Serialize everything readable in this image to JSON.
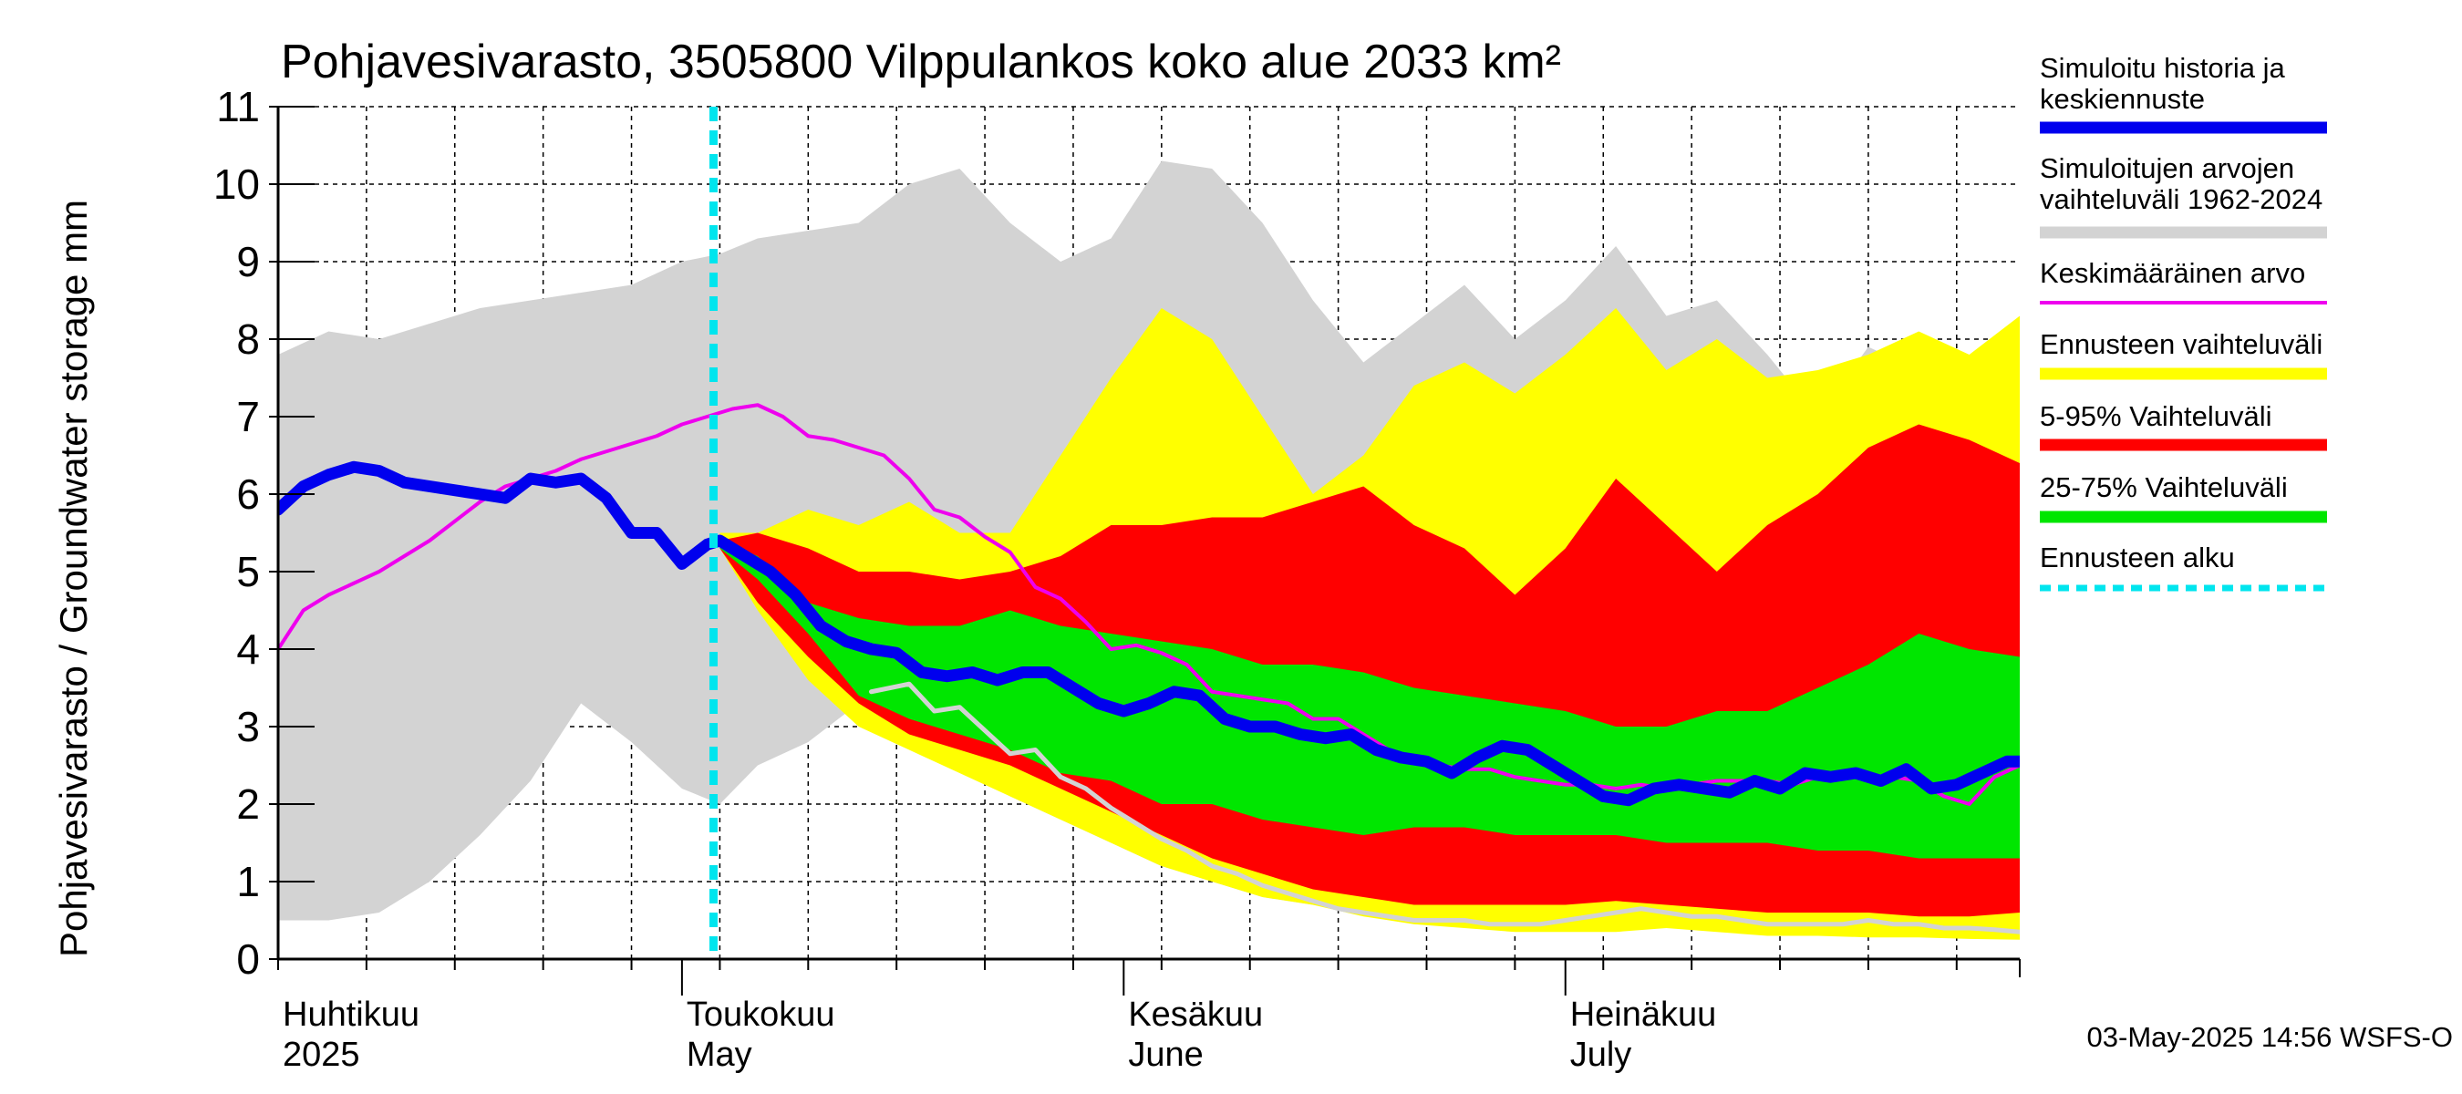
{
  "chart_data": {
    "type": "area",
    "title": "Pohjavesivarasto, 3505800 Vilppulankos koko alue 2033 km²",
    "ylabel": "Pohjavesivarasto / Groundwater storage   mm",
    "ylim": [
      0,
      11
    ],
    "yticks": [
      "0",
      "1",
      "2",
      "3",
      "4",
      "5",
      "6",
      "7",
      "8",
      "9",
      "10",
      "11"
    ],
    "xlim": [
      0,
      138
    ],
    "grid": true,
    "legend_position": "right",
    "month_labels": [
      {
        "day": 0,
        "fi": "Huhtikuu",
        "en": "2025"
      },
      {
        "day": 32,
        "fi": "Toukokuu",
        "en": "May"
      },
      {
        "day": 67,
        "fi": "Kesäkuu",
        "en": "June"
      },
      {
        "day": 102,
        "fi": "Heinäkuu",
        "en": "July"
      }
    ],
    "forecast_start_day": 34.5,
    "colors": {
      "history_range": "#d3d3d3",
      "forecast_range": "#ffff00",
      "p5_95": "#ff0000",
      "p25_75": "#00e600",
      "median": "#0000ee",
      "mean": "#ee00ee",
      "min_line": "#d3d3d3",
      "forecast_start": "#00e5ee"
    },
    "history_range": {
      "x": [
        0,
        4,
        8,
        12,
        16,
        20,
        24,
        28,
        32,
        35,
        38,
        42,
        46,
        50,
        54,
        58,
        62,
        66,
        70,
        74,
        78,
        82,
        86,
        90,
        94,
        98,
        102,
        106,
        110,
        114,
        118,
        122,
        126,
        130,
        134,
        138
      ],
      "upper": [
        7.8,
        8.1,
        8.0,
        8.2,
        8.4,
        8.5,
        8.6,
        8.7,
        9.0,
        9.1,
        9.3,
        9.4,
        9.5,
        10.0,
        10.2,
        9.5,
        9.0,
        9.3,
        10.3,
        10.2,
        9.5,
        8.5,
        7.7,
        8.2,
        8.7,
        8.0,
        8.5,
        9.2,
        8.3,
        8.5,
        7.8,
        7.0,
        7.9,
        7.6,
        7.3,
        7.6
      ],
      "lower": [
        0.5,
        0.5,
        0.6,
        1.0,
        1.6,
        2.3,
        3.3,
        2.8,
        2.2,
        2.0,
        2.5,
        2.8,
        3.3,
        3.0,
        2.5,
        2.1,
        1.8,
        1.5,
        1.2,
        1.0,
        0.8,
        0.7,
        0.6,
        0.5,
        0.45,
        0.45,
        0.5,
        0.5,
        0.45,
        0.4,
        0.4,
        0.35,
        0.35,
        0.33,
        0.3,
        0.3
      ]
    },
    "forecast_range": {
      "x": [
        35,
        38,
        42,
        46,
        50,
        54,
        58,
        62,
        66,
        70,
        74,
        78,
        82,
        86,
        90,
        94,
        98,
        102,
        106,
        110,
        114,
        118,
        122,
        126,
        130,
        134,
        138
      ],
      "upper": [
        5.5,
        5.5,
        5.8,
        5.6,
        5.9,
        5.5,
        5.5,
        6.5,
        7.5,
        8.4,
        8.0,
        7.0,
        6.0,
        6.5,
        7.4,
        7.7,
        7.3,
        7.8,
        8.4,
        7.6,
        8.0,
        7.5,
        7.6,
        7.8,
        8.1,
        7.8,
        8.3
      ],
      "lower": [
        5.3,
        4.5,
        3.6,
        3.0,
        2.7,
        2.4,
        2.1,
        1.8,
        1.5,
        1.2,
        1.0,
        0.8,
        0.7,
        0.55,
        0.45,
        0.4,
        0.35,
        0.35,
        0.35,
        0.4,
        0.35,
        0.3,
        0.3,
        0.28,
        0.28,
        0.26,
        0.25
      ]
    },
    "p5_95": {
      "x": [
        35,
        38,
        42,
        46,
        50,
        54,
        58,
        62,
        66,
        70,
        74,
        78,
        82,
        86,
        90,
        94,
        98,
        102,
        106,
        110,
        114,
        118,
        122,
        126,
        130,
        134,
        138
      ],
      "upper": [
        5.4,
        5.5,
        5.3,
        5.0,
        5.0,
        4.9,
        5.0,
        5.2,
        5.6,
        5.6,
        5.7,
        5.7,
        5.9,
        6.1,
        5.6,
        5.3,
        4.7,
        5.3,
        6.2,
        5.6,
        5.0,
        5.6,
        6.0,
        6.6,
        6.9,
        6.7,
        6.4
      ],
      "lower": [
        5.3,
        4.6,
        3.9,
        3.3,
        2.9,
        2.7,
        2.5,
        2.2,
        1.9,
        1.6,
        1.3,
        1.1,
        0.9,
        0.8,
        0.7,
        0.7,
        0.7,
        0.7,
        0.75,
        0.7,
        0.65,
        0.6,
        0.6,
        0.6,
        0.55,
        0.55,
        0.6
      ]
    },
    "p25_75": {
      "x": [
        35,
        38,
        42,
        46,
        50,
        54,
        58,
        62,
        66,
        70,
        74,
        78,
        82,
        86,
        90,
        94,
        98,
        102,
        106,
        110,
        114,
        118,
        122,
        126,
        130,
        134,
        138
      ],
      "upper": [
        5.4,
        5.2,
        4.6,
        4.4,
        4.3,
        4.3,
        4.5,
        4.3,
        4.2,
        4.1,
        4.0,
        3.8,
        3.8,
        3.7,
        3.5,
        3.4,
        3.3,
        3.2,
        3.0,
        3.0,
        3.2,
        3.2,
        3.5,
        3.8,
        4.2,
        4.0,
        3.9
      ],
      "lower": [
        5.3,
        4.9,
        4.2,
        3.4,
        3.1,
        2.9,
        2.7,
        2.4,
        2.3,
        2.0,
        2.0,
        1.8,
        1.7,
        1.6,
        1.7,
        1.7,
        1.6,
        1.6,
        1.6,
        1.5,
        1.5,
        1.5,
        1.4,
        1.4,
        1.3,
        1.3,
        1.3
      ]
    },
    "series": [
      {
        "name": "Simuloitu historia ja keskiennuste",
        "x": [
          0,
          2,
          4,
          6,
          8,
          10,
          12,
          14,
          16,
          18,
          20,
          22,
          24,
          26,
          28,
          30,
          32,
          34,
          35,
          37,
          39,
          41,
          43,
          45,
          47,
          49,
          51,
          53,
          55,
          57,
          59,
          61,
          63,
          65,
          67,
          69,
          71,
          73,
          75,
          77,
          79,
          81,
          83,
          85,
          87,
          89,
          91,
          93,
          95,
          97,
          99,
          101,
          103,
          105,
          107,
          109,
          111,
          113,
          115,
          117,
          119,
          121,
          123,
          125,
          127,
          129,
          131,
          133,
          135,
          137,
          138
        ],
        "values": [
          5.8,
          6.1,
          6.25,
          6.35,
          6.3,
          6.15,
          6.1,
          6.05,
          6.0,
          5.95,
          6.2,
          6.15,
          6.2,
          5.95,
          5.5,
          5.5,
          5.1,
          5.35,
          5.4,
          5.2,
          5.0,
          4.7,
          4.3,
          4.1,
          4.0,
          3.95,
          3.7,
          3.65,
          3.7,
          3.6,
          3.7,
          3.7,
          3.5,
          3.3,
          3.2,
          3.3,
          3.45,
          3.4,
          3.1,
          3.0,
          3.0,
          2.9,
          2.85,
          2.9,
          2.7,
          2.6,
          2.55,
          2.4,
          2.6,
          2.75,
          2.7,
          2.5,
          2.3,
          2.1,
          2.05,
          2.2,
          2.25,
          2.2,
          2.15,
          2.3,
          2.2,
          2.4,
          2.35,
          2.4,
          2.3,
          2.45,
          2.2,
          2.25,
          2.4,
          2.55,
          2.55
        ]
      },
      {
        "name": "Keskimääräinen arvo",
        "x": [
          0,
          2,
          4,
          6,
          8,
          10,
          12,
          14,
          16,
          18,
          20,
          22,
          24,
          26,
          28,
          30,
          32,
          34,
          36,
          38,
          40,
          42,
          44,
          46,
          48,
          50,
          52,
          54,
          56,
          58,
          60,
          62,
          64,
          66,
          68,
          70,
          72,
          74,
          76,
          78,
          80,
          82,
          84,
          86,
          88,
          90,
          92,
          94,
          96,
          98,
          100,
          102,
          104,
          106,
          108,
          110,
          112,
          114,
          116,
          118,
          120,
          122,
          124,
          126,
          128,
          130,
          132,
          134,
          136,
          138
        ],
        "values": [
          4.0,
          4.5,
          4.7,
          4.85,
          5.0,
          5.2,
          5.4,
          5.65,
          5.9,
          6.1,
          6.2,
          6.3,
          6.45,
          6.55,
          6.65,
          6.75,
          6.9,
          7.0,
          7.1,
          7.15,
          7.0,
          6.75,
          6.7,
          6.6,
          6.5,
          6.2,
          5.8,
          5.7,
          5.45,
          5.25,
          4.8,
          4.65,
          4.35,
          4.0,
          4.05,
          3.95,
          3.8,
          3.45,
          3.4,
          3.35,
          3.3,
          3.1,
          3.1,
          2.9,
          2.7,
          2.55,
          2.5,
          2.45,
          2.45,
          2.35,
          2.3,
          2.25,
          2.25,
          2.2,
          2.25,
          2.2,
          2.25,
          2.3,
          2.3,
          2.3,
          2.25,
          2.35,
          2.4,
          2.35,
          2.35,
          2.3,
          2.1,
          2.0,
          2.35,
          2.5
        ]
      },
      {
        "name": "Simuloitujen arvojen vaihteluväli 1962-2024",
        "x": [
          47,
          50,
          52,
          54,
          56,
          58,
          60,
          62,
          64,
          66,
          68,
          70,
          72,
          74,
          76,
          78,
          80,
          82,
          84,
          86,
          88,
          90,
          92,
          94,
          96,
          98,
          100,
          102,
          104,
          106,
          108,
          110,
          112,
          114,
          116,
          118,
          120,
          122,
          124,
          126,
          128,
          130,
          132,
          134,
          136,
          138
        ],
        "values": [
          3.45,
          3.55,
          3.2,
          3.25,
          2.95,
          2.65,
          2.7,
          2.35,
          2.2,
          1.95,
          1.75,
          1.55,
          1.4,
          1.2,
          1.1,
          0.95,
          0.85,
          0.75,
          0.65,
          0.6,
          0.55,
          0.5,
          0.5,
          0.5,
          0.45,
          0.45,
          0.45,
          0.5,
          0.55,
          0.6,
          0.65,
          0.6,
          0.55,
          0.55,
          0.5,
          0.45,
          0.45,
          0.45,
          0.45,
          0.5,
          0.45,
          0.45,
          0.4,
          0.4,
          0.38,
          0.35
        ]
      }
    ],
    "legend": [
      {
        "label": "Simuloitu historia ja keskiennuste",
        "key": "median"
      },
      {
        "label": "Simuloitujen arvojen vaihteluväli 1962-2024",
        "key": "history_range"
      },
      {
        "label": "Keskimääräinen arvo",
        "key": "mean"
      },
      {
        "label": "Ennusteen vaihteluväli",
        "key": "forecast_range"
      },
      {
        "label": "5-95% Vaihteluväli",
        "key": "p5_95"
      },
      {
        "label": "25-75% Vaihteluväli",
        "key": "p25_75"
      },
      {
        "label": "Ennusteen alku",
        "key": "forecast_start"
      }
    ],
    "footer": "03-May-2025 14:56 WSFS-O"
  }
}
